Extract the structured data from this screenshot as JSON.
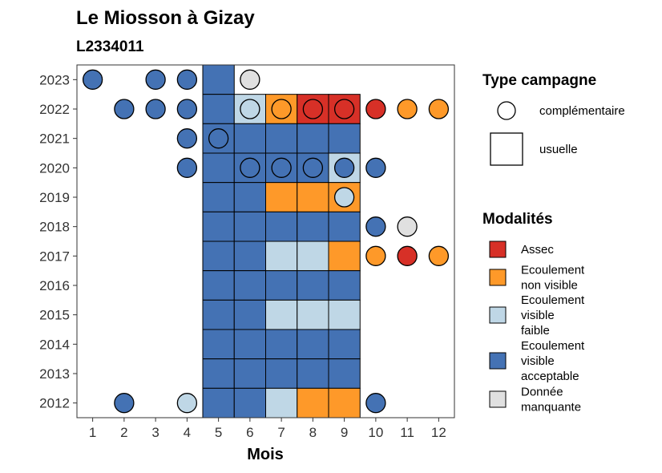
{
  "chart_data": {
    "type": "heatmap",
    "title": "Le Miosson à Gizay",
    "subtitle": "L2334011",
    "xlabel": "Mois",
    "ylabel": "",
    "x_ticks": [
      "1",
      "2",
      "3",
      "4",
      "5",
      "6",
      "7",
      "8",
      "9",
      "10",
      "11",
      "12"
    ],
    "y_ticks": [
      2023,
      2022,
      2021,
      2020,
      2019,
      2018,
      2017,
      2016,
      2015,
      2014,
      2013,
      2012
    ],
    "xlim": [
      0.5,
      12.5
    ],
    "ylim": [
      2011.5,
      2023.5
    ],
    "grid": false,
    "legend_placement": "right",
    "colors": {
      "assec": "#d73027",
      "ecoulement_non_visible": "#fe9929",
      "ecoulement_visible_faible": "#bfd7e6",
      "ecoulement_visible_acceptable": "#4472b4",
      "donnee_manquante": "#e0e0e0"
    },
    "legend_type": {
      "title": "Type campagne",
      "items": [
        {
          "key": "complementaire",
          "label": "complémentaire",
          "shape": "circle"
        },
        {
          "key": "usuelle",
          "label": "usuelle",
          "shape": "square"
        }
      ]
    },
    "legend_modalites": {
      "title": "Modalités",
      "items": [
        {
          "key": "assec",
          "lines": [
            "Assec"
          ]
        },
        {
          "key": "ecoulement_non_visible",
          "lines": [
            "Ecoulement",
            "non visible"
          ]
        },
        {
          "key": "ecoulement_visible_faible",
          "lines": [
            "Ecoulement",
            "visible",
            "faible"
          ]
        },
        {
          "key": "ecoulement_visible_acceptable",
          "lines": [
            "Ecoulement",
            "visible",
            "acceptable"
          ]
        },
        {
          "key": "donnee_manquante",
          "lines": [
            "Donnée",
            "manquante"
          ]
        }
      ]
    },
    "usuelle": [
      {
        "year": 2023,
        "cells": {
          "5": "A"
        }
      },
      {
        "year": 2022,
        "cells": {
          "5": "A",
          "6": "F",
          "7": "N",
          "8": "S",
          "9": "S"
        }
      },
      {
        "year": 2021,
        "cells": {
          "5": "A",
          "6": "A",
          "7": "A",
          "8": "A",
          "9": "A"
        }
      },
      {
        "year": 2020,
        "cells": {
          "5": "A",
          "6": "A",
          "7": "A",
          "8": "A",
          "9": "F"
        }
      },
      {
        "year": 2019,
        "cells": {
          "5": "A",
          "6": "A",
          "7": "N",
          "8": "N",
          "9": "N"
        }
      },
      {
        "year": 2018,
        "cells": {
          "5": "A",
          "6": "A",
          "7": "A",
          "8": "A",
          "9": "A"
        }
      },
      {
        "year": 2017,
        "cells": {
          "5": "A",
          "6": "A",
          "7": "F",
          "8": "F",
          "9": "N"
        }
      },
      {
        "year": 2016,
        "cells": {
          "5": "A",
          "6": "A",
          "7": "A",
          "8": "A",
          "9": "A"
        }
      },
      {
        "year": 2015,
        "cells": {
          "5": "A",
          "6": "A",
          "7": "F",
          "8": "F",
          "9": "F"
        }
      },
      {
        "year": 2014,
        "cells": {
          "5": "A",
          "6": "A",
          "7": "A",
          "8": "A",
          "9": "A"
        }
      },
      {
        "year": 2013,
        "cells": {
          "5": "A",
          "6": "A",
          "7": "A",
          "8": "A",
          "9": "A"
        }
      },
      {
        "year": 2012,
        "cells": {
          "5": "A",
          "6": "A",
          "7": "F",
          "8": "N",
          "9": "N"
        }
      }
    ],
    "complementaire": [
      {
        "year": 2023,
        "month": 1,
        "value": "A"
      },
      {
        "year": 2023,
        "month": 3,
        "value": "A"
      },
      {
        "year": 2023,
        "month": 4,
        "value": "A"
      },
      {
        "year": 2023,
        "month": 6,
        "value": "M"
      },
      {
        "year": 2022,
        "month": 2,
        "value": "A"
      },
      {
        "year": 2022,
        "month": 3,
        "value": "A"
      },
      {
        "year": 2022,
        "month": 4,
        "value": "A"
      },
      {
        "year": 2022,
        "month": 6,
        "value": "F"
      },
      {
        "year": 2022,
        "month": 7,
        "value": "N"
      },
      {
        "year": 2022,
        "month": 8,
        "value": "S"
      },
      {
        "year": 2022,
        "month": 9,
        "value": "S"
      },
      {
        "year": 2022,
        "month": 10,
        "value": "S"
      },
      {
        "year": 2022,
        "month": 11,
        "value": "N"
      },
      {
        "year": 2022,
        "month": 12,
        "value": "N"
      },
      {
        "year": 2021,
        "month": 4,
        "value": "A"
      },
      {
        "year": 2021,
        "month": 5,
        "value": "A"
      },
      {
        "year": 2020,
        "month": 4,
        "value": "A"
      },
      {
        "year": 2020,
        "month": 6,
        "value": "A"
      },
      {
        "year": 2020,
        "month": 7,
        "value": "A"
      },
      {
        "year": 2020,
        "month": 8,
        "value": "A"
      },
      {
        "year": 2020,
        "month": 9,
        "value": "A"
      },
      {
        "year": 2020,
        "month": 10,
        "value": "A"
      },
      {
        "year": 2019,
        "month": 9,
        "value": "F"
      },
      {
        "year": 2018,
        "month": 10,
        "value": "A"
      },
      {
        "year": 2018,
        "month": 11,
        "value": "M"
      },
      {
        "year": 2017,
        "month": 10,
        "value": "N"
      },
      {
        "year": 2017,
        "month": 11,
        "value": "S"
      },
      {
        "year": 2017,
        "month": 12,
        "value": "N"
      },
      {
        "year": 2012,
        "month": 2,
        "value": "A"
      },
      {
        "year": 2012,
        "month": 4,
        "value": "F"
      },
      {
        "year": 2012,
        "month": 10,
        "value": "A"
      }
    ],
    "value_codes": {
      "S": "assec",
      "N": "ecoulement_non_visible",
      "F": "ecoulement_visible_faible",
      "A": "ecoulement_visible_acceptable",
      "M": "donnee_manquante"
    }
  }
}
